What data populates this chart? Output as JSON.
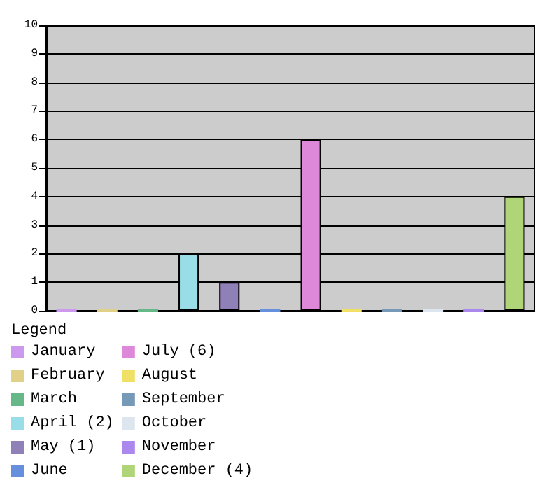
{
  "chart_data": {
    "type": "bar",
    "categories": [
      null,
      null,
      null,
      null,
      null,
      null,
      null,
      null,
      null,
      null,
      null,
      null
    ],
    "series": [
      {
        "name": "January",
        "color": "#cc99ee",
        "values": [
          0,
          null,
          null,
          null,
          null,
          null,
          null,
          null,
          null,
          null,
          null,
          null
        ]
      },
      {
        "name": "February",
        "color": "#e0d088",
        "values": [
          null,
          0,
          null,
          null,
          null,
          null,
          null,
          null,
          null,
          null,
          null,
          null
        ]
      },
      {
        "name": "March",
        "color": "#66b888",
        "values": [
          null,
          null,
          0,
          null,
          null,
          null,
          null,
          null,
          null,
          null,
          null,
          null
        ]
      },
      {
        "name": "April (2)",
        "color": "#99dde8",
        "values": [
          null,
          null,
          null,
          2,
          null,
          null,
          null,
          null,
          null,
          null,
          null,
          null
        ]
      },
      {
        "name": "May (1)",
        "color": "#9080b8",
        "values": [
          null,
          null,
          null,
          null,
          1,
          null,
          null,
          null,
          null,
          null,
          null,
          null
        ]
      },
      {
        "name": "June",
        "color": "#6690dd",
        "values": [
          null,
          null,
          null,
          null,
          null,
          0,
          null,
          null,
          null,
          null,
          null,
          null
        ]
      },
      {
        "name": "July (6)",
        "color": "#dd88d8",
        "values": [
          null,
          null,
          null,
          null,
          null,
          null,
          6,
          null,
          null,
          null,
          null,
          null
        ]
      },
      {
        "name": "August",
        "color": "#f0e066",
        "values": [
          null,
          null,
          null,
          null,
          null,
          null,
          null,
          0,
          null,
          null,
          null,
          null
        ]
      },
      {
        "name": "September",
        "color": "#7799b8",
        "values": [
          null,
          null,
          null,
          null,
          null,
          null,
          null,
          null,
          0,
          null,
          null,
          null
        ]
      },
      {
        "name": "October",
        "color": "#dde6ee",
        "values": [
          null,
          null,
          null,
          null,
          null,
          null,
          null,
          null,
          null,
          0,
          null,
          null
        ]
      },
      {
        "name": "November",
        "color": "#aa88ee",
        "values": [
          null,
          null,
          null,
          null,
          null,
          null,
          null,
          null,
          null,
          null,
          0,
          null
        ]
      },
      {
        "name": "December (4)",
        "color": "#b0d478",
        "values": [
          null,
          null,
          null,
          null,
          null,
          null,
          null,
          null,
          null,
          null,
          null,
          4
        ]
      }
    ],
    "legend_title": "Legend",
    "legend": "bottom",
    "ylim": [
      0,
      10
    ],
    "yticks": [
      0,
      1,
      2,
      3,
      4,
      5,
      6,
      7,
      8,
      9,
      10
    ],
    "grid": "y",
    "tick_labels": "y"
  }
}
